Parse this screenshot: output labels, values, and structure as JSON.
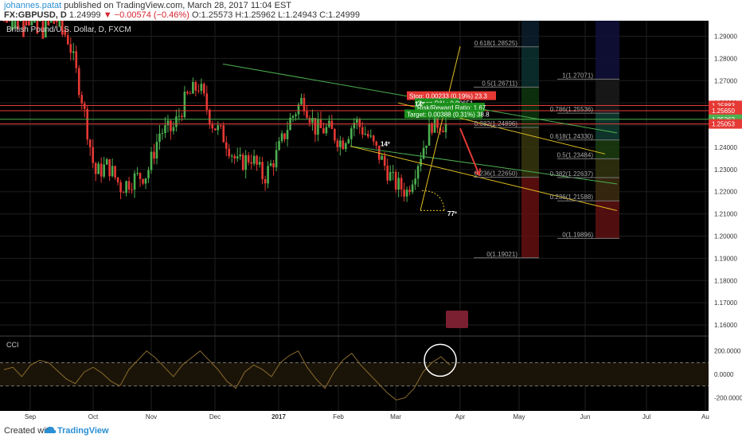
{
  "header": {
    "author": "johannes.patat",
    "published": " published on TradingView.com, March 28, 2017 11:04 EST",
    "symbol": "FX:GBPUSD, D",
    "last": "1.24999",
    "change": "▼ −0.00574 (−0.46%)",
    "ohlc": "O:1.25573 H:1.25962 L:1.24943 C:1.24999"
  },
  "footer": {
    "created": "Created with",
    "brand": "TradingView"
  },
  "colors": {
    "background": "#000000",
    "up": "#4caf50",
    "down": "#e53935",
    "grid": "#1f1f1f",
    "axis_text": "#b0b0b0",
    "fib_text": "#aaaaaa",
    "channel_green": "#4caf50",
    "channel_yellow": "#e0c020",
    "price_red": "#e53935",
    "cci_line": "#8b6a2c"
  },
  "chart_data": {
    "type": "candlestick",
    "title": "British Pound/U.S. Dollar, D, FXCM",
    "x_ticks": [
      "Sep",
      "Oct",
      "Nov",
      "Dec",
      "2017",
      "Feb",
      "Mar",
      "Apr",
      "May",
      "Jun",
      "Jul",
      "Au"
    ],
    "y_ticks": [
      "1.29000",
      "1.28000",
      "1.27000",
      "1.26000",
      "1.25000",
      "1.24000",
      "1.23000",
      "1.22000",
      "1.21000",
      "1.20000",
      "1.19000",
      "1.18000",
      "1.17000",
      "1.16000"
    ],
    "ylim": [
      1.155,
      1.297
    ],
    "candles_description": "GBPUSD daily candles Aug 2016 - Mar 2017",
    "closes_weekly": [
      1.312,
      1.318,
      1.305,
      1.296,
      1.298,
      1.288,
      1.262,
      1.228,
      1.232,
      1.222,
      1.226,
      1.228,
      1.247,
      1.248,
      1.262,
      1.268,
      1.251,
      1.244,
      1.232,
      1.236,
      1.226,
      1.237,
      1.252,
      1.262,
      1.248,
      1.248,
      1.242,
      1.252,
      1.245,
      1.235,
      1.224,
      1.22,
      1.236,
      1.252,
      1.25
    ],
    "price_labels": [
      {
        "text": "1.25883",
        "price": 1.25883,
        "color": "#e53935"
      },
      {
        "text": "1.25650",
        "price": 1.2565,
        "color": "#e53935"
      },
      {
        "text": "1.25262",
        "price": 1.25262,
        "color": "#4caf50"
      },
      {
        "text": "1.25053",
        "price": 1.25053,
        "color": "#e53935"
      }
    ],
    "fib_left": [
      {
        "label": "0.618(1.28525)",
        "price": 1.28525
      },
      {
        "label": "0.5(1.26711)",
        "price": 1.26711
      },
      {
        "label": "0.382(1.24896)",
        "price": 1.24896
      },
      {
        "label": "0.236(1.22650)",
        "price": 1.2265
      },
      {
        "label": "0(1.19021)",
        "price": 1.19021
      }
    ],
    "fib_right": [
      {
        "label": "1(1.27071)",
        "price": 1.27071
      },
      {
        "label": "0.786(1.25536)",
        "price": 1.25536
      },
      {
        "label": "0.618(1.24330)",
        "price": 1.2433
      },
      {
        "label": "0.5(1.23484)",
        "price": 1.23484
      },
      {
        "label": "0.382(1.22637)",
        "price": 1.22637
      },
      {
        "label": "0.236(1.21588)",
        "price": 1.21588
      },
      {
        "label": "0(1.19896)",
        "price": 1.19896
      }
    ],
    "position": {
      "stop": "Stop: 0.00233 (0.19%) 23.3",
      "pnl": "Open P&L: 0.00651",
      "rr": "Risk/Reward Ratio: 1.67",
      "target": "Target: 0.00388 (0.31%) 38.8"
    },
    "angles": [
      "14º",
      "14º",
      "77º"
    ],
    "cci": {
      "label": "CCI",
      "y_ticks": [
        "200.0000",
        "0.0000",
        "-200.0000"
      ],
      "ylim": [
        -300,
        300
      ],
      "values": [
        40,
        60,
        -20,
        80,
        120,
        100,
        30,
        -40,
        -80,
        20,
        60,
        10,
        -60,
        -100,
        40,
        120,
        200,
        140,
        60,
        -20,
        80,
        140,
        200,
        120,
        40,
        -60,
        -120,
        20,
        80,
        40,
        -20,
        100,
        160,
        200,
        60,
        -40,
        -120,
        20,
        120,
        180,
        80,
        0,
        -80,
        -160,
        -220,
        -200,
        -120,
        20,
        100,
        150,
        80
      ]
    }
  }
}
